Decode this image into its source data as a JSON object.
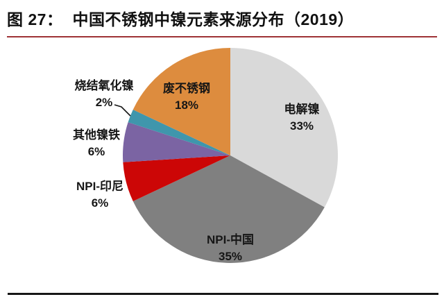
{
  "title": {
    "prefix": "图 27：",
    "text": "中国不锈钢中镍元素来源分布（2019）"
  },
  "chart_data": {
    "type": "pie",
    "title": "中国不锈钢中镍元素来源分布（2019）",
    "start_angle_deg": 0,
    "direction": "clockwise",
    "unit": "%",
    "slices": [
      {
        "label": "电解镍",
        "value": 33,
        "display": "33%",
        "color": "#d9d9d9",
        "label_placement": "inside"
      },
      {
        "label": "NPI-中国",
        "value": 35,
        "display": "35%",
        "color": "#808080",
        "label_placement": "inside"
      },
      {
        "label": "NPI-印尼",
        "value": 6,
        "display": "6%",
        "color": "#cc0606",
        "label_placement": "outside"
      },
      {
        "label": "其他镍铁",
        "value": 6,
        "display": "6%",
        "color": "#7b64a3",
        "label_placement": "outside"
      },
      {
        "label": "烧结氧化镍",
        "value": 2,
        "display": "2%",
        "color": "#3f96ac",
        "label_placement": "outside",
        "leader_line": true
      },
      {
        "label": "废不锈钢",
        "value": 18,
        "display": "18%",
        "color": "#dd8c3e",
        "label_placement": "inside"
      }
    ]
  },
  "decor": {
    "top_rule_color": "#9e3235",
    "bottom_rule_color": "#161616"
  }
}
